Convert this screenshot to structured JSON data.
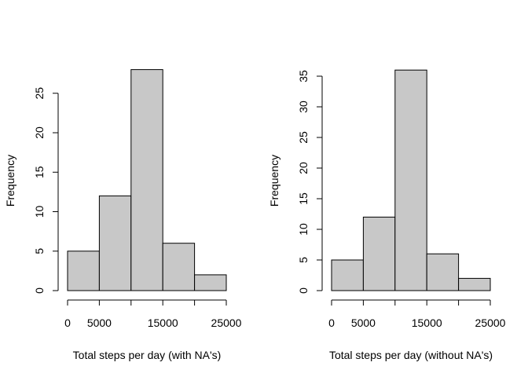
{
  "chart_data": [
    {
      "type": "bar",
      "subtype": "histogram",
      "title": "",
      "xlabel": "Total steps per day (with NA's)",
      "ylabel": "Frequency",
      "bins": [
        [
          0,
          5000
        ],
        [
          5000,
          10000
        ],
        [
          10000,
          15000
        ],
        [
          15000,
          20000
        ],
        [
          20000,
          25000
        ]
      ],
      "values": [
        5,
        12,
        28,
        6,
        2
      ],
      "xlim": [
        0,
        25000
      ],
      "ylim": [
        0,
        28
      ],
      "xticks": [
        0,
        5000,
        10000,
        15000,
        20000,
        25000
      ],
      "xtick_labels": [
        "0",
        "5000",
        "",
        "15000",
        "",
        "25000"
      ],
      "yticks": [
        0,
        5,
        10,
        15,
        20,
        25
      ],
      "ytick_labels": [
        "0",
        "5",
        "10",
        "15",
        "20",
        "25"
      ],
      "bar_color": "#c8c8c8",
      "grid": false
    },
    {
      "type": "bar",
      "subtype": "histogram",
      "title": "",
      "xlabel": "Total steps per day (without NA's)",
      "ylabel": "Frequency",
      "bins": [
        [
          0,
          5000
        ],
        [
          5000,
          10000
        ],
        [
          10000,
          15000
        ],
        [
          15000,
          20000
        ],
        [
          20000,
          25000
        ]
      ],
      "values": [
        5,
        12,
        36,
        6,
        2
      ],
      "xlim": [
        0,
        25000
      ],
      "ylim": [
        0,
        36
      ],
      "xticks": [
        0,
        5000,
        10000,
        15000,
        20000,
        25000
      ],
      "xtick_labels": [
        "0",
        "5000",
        "",
        "15000",
        "",
        "25000"
      ],
      "yticks": [
        0,
        5,
        10,
        15,
        20,
        25,
        30,
        35
      ],
      "ytick_labels": [
        "0",
        "5",
        "10",
        "15",
        "20",
        "25",
        "30",
        "35"
      ],
      "bar_color": "#c8c8c8",
      "grid": false
    }
  ]
}
